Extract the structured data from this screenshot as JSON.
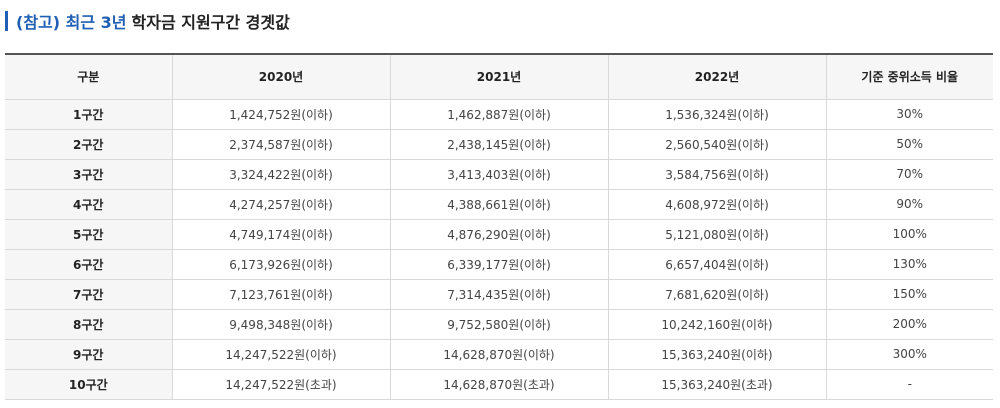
{
  "heading": {
    "prefix": "(참고) 최근 3년",
    "title": "학자금 지원구간 경곗값"
  },
  "colors": {
    "accent": "#1f5fb4",
    "header_bg": "#f6f6f6",
    "border": "#d9d9d9"
  },
  "table": {
    "headers": [
      "구분",
      "2020년",
      "2021년",
      "2022년",
      "기준 중위소득 비율"
    ],
    "rows": [
      [
        "1구간",
        "1,424,752원(이하)",
        "1,462,887원(이하)",
        "1,536,324원(이하)",
        "30%"
      ],
      [
        "2구간",
        "2,374,587원(이하)",
        "2,438,145원(이하)",
        "2,560,540원(이하)",
        "50%"
      ],
      [
        "3구간",
        "3,324,422원(이하)",
        "3,413,403원(이하)",
        "3,584,756원(이하)",
        "70%"
      ],
      [
        "4구간",
        "4,274,257원(이하)",
        "4,388,661원(이하)",
        "4,608,972원(이하)",
        "90%"
      ],
      [
        "5구간",
        "4,749,174원(이하)",
        "4,876,290원(이하)",
        "5,121,080원(이하)",
        "100%"
      ],
      [
        "6구간",
        "6,173,926원(이하)",
        "6,339,177원(이하)",
        "6,657,404원(이하)",
        "130%"
      ],
      [
        "7구간",
        "7,123,761원(이하)",
        "7,314,435원(이하)",
        "7,681,620원(이하)",
        "150%"
      ],
      [
        "8구간",
        "9,498,348원(이하)",
        "9,752,580원(이하)",
        "10,242,160원(이하)",
        "200%"
      ],
      [
        "9구간",
        "14,247,522원(이하)",
        "14,628,870원(이하)",
        "15,363,240원(이하)",
        "300%"
      ],
      [
        "10구간",
        "14,247,522원(초과)",
        "14,628,870원(초과)",
        "15,363,240원(초과)",
        "-"
      ]
    ]
  }
}
